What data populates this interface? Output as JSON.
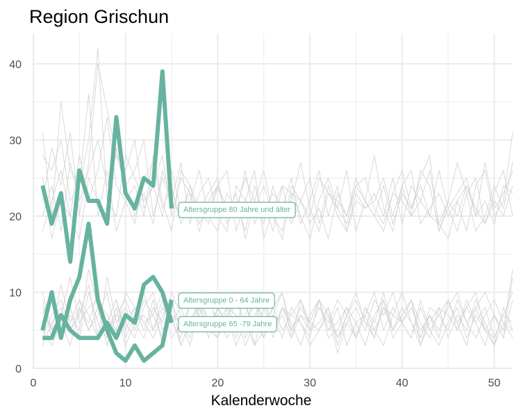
{
  "chart_data": {
    "type": "line",
    "title": "Region Grischun",
    "xlabel": "Kalenderwoche",
    "ylabel": "",
    "xlim": [
      0,
      52
    ],
    "ylim": [
      0,
      44
    ],
    "x_ticks": [
      0,
      10,
      20,
      30,
      40,
      50
    ],
    "y_ticks": [
      0,
      10,
      20,
      30,
      40
    ],
    "grid": true,
    "highlight_color": "#66b3a0",
    "background_color": "#d4d4d4",
    "series": [
      {
        "name": "Altersgruppe 80 Jahre und älter",
        "x": [
          1,
          2,
          3,
          4,
          5,
          6,
          7,
          8,
          9,
          10,
          11,
          12,
          13,
          14,
          15
        ],
        "values": [
          24,
          19,
          23,
          14,
          26,
          22,
          22,
          19,
          33,
          23,
          21,
          25,
          24,
          39,
          21
        ]
      },
      {
        "name": "Altersgruppe 0 - 64 Jahre",
        "x": [
          1,
          2,
          3,
          4,
          5,
          6,
          7,
          8,
          9,
          10,
          11,
          12,
          13,
          14,
          15
        ],
        "values": [
          4,
          4,
          7,
          5,
          4,
          4,
          4,
          6,
          4,
          7,
          6,
          11,
          12,
          10,
          6
        ]
      },
      {
        "name": "Altersgruppe 65 -79 Jahre",
        "x": [
          1,
          2,
          3,
          4,
          5,
          6,
          7,
          8,
          9,
          10,
          11,
          12,
          13,
          14,
          15
        ],
        "values": [
          5,
          10,
          4,
          9,
          12,
          19,
          9,
          5,
          2,
          1,
          3,
          1,
          2,
          3,
          9
        ]
      }
    ],
    "background_series": [
      [
        28,
        26,
        30,
        22,
        24,
        36,
        20,
        26,
        18,
        22,
        24,
        20,
        28,
        22,
        18,
        26,
        24,
        19,
        21,
        24,
        20,
        23,
        17,
        22,
        26,
        20,
        18,
        24,
        22,
        19,
        21,
        17,
        23,
        20,
        25,
        22,
        28,
        21,
        18,
        24,
        20,
        22,
        26,
        19,
        17,
        22,
        24,
        20,
        27,
        21,
        23,
        26
      ],
      [
        22,
        29,
        24,
        31,
        20,
        27,
        40,
        34,
        28,
        24,
        26,
        30,
        20,
        25,
        22,
        27,
        19,
        23,
        25,
        20,
        18,
        24,
        22,
        26,
        17,
        21,
        24,
        19,
        22,
        20,
        25,
        23,
        21,
        26,
        18,
        22,
        20,
        24,
        19,
        23,
        21,
        25,
        28,
        18,
        22,
        20,
        24,
        21,
        19,
        23,
        26,
        20
      ],
      [
        31,
        20,
        35,
        26,
        24,
        30,
        42,
        22,
        20,
        28,
        25,
        22,
        24,
        20,
        26,
        21,
        23,
        18,
        22,
        24,
        21,
        20,
        26,
        19,
        22,
        18,
        24,
        23,
        20,
        17,
        22,
        25,
        21,
        19,
        24,
        22,
        20,
        18,
        23,
        26,
        21,
        24,
        20,
        19,
        22,
        27,
        23,
        18,
        20,
        24,
        21,
        27
      ],
      [
        20,
        24,
        18,
        27,
        22,
        26,
        30,
        24,
        28,
        26,
        30,
        21,
        24,
        28,
        20,
        25,
        23,
        21,
        19,
        24,
        26,
        18,
        22,
        21,
        24,
        20,
        17,
        23,
        22,
        25,
        19,
        24,
        20,
        18,
        23,
        21,
        22,
        25,
        20,
        24,
        26,
        19,
        21,
        23,
        20,
        22,
        18,
        24,
        26,
        20,
        22,
        31
      ],
      [
        25,
        17,
        22,
        20,
        28,
        22,
        26,
        33,
        24,
        22,
        19,
        25,
        27,
        21,
        24,
        19,
        22,
        26,
        20,
        18,
        23,
        21,
        25,
        22,
        19,
        24,
        20,
        22,
        27,
        21,
        18,
        23,
        22,
        20,
        24,
        25,
        21,
        19,
        23,
        22,
        20,
        26,
        24,
        18,
        21,
        23,
        25,
        20,
        22,
        19,
        24,
        23
      ],
      [
        18,
        22,
        26,
        20,
        17,
        25,
        22,
        20,
        29,
        24,
        20,
        23,
        19,
        26,
        22,
        20,
        24,
        21,
        23,
        25,
        19,
        22,
        18,
        24,
        20,
        23,
        21,
        25,
        19,
        22,
        26,
        20,
        24,
        18,
        22,
        21,
        23,
        20,
        25,
        19,
        24,
        22,
        20,
        26,
        21,
        18,
        23,
        25,
        19,
        22,
        20,
        24
      ],
      [
        8,
        5,
        11,
        6,
        9,
        7,
        4,
        12,
        6,
        8,
        5,
        9,
        7,
        10,
        6,
        8,
        5,
        7,
        9,
        6,
        8,
        4,
        7,
        10,
        6,
        5,
        8,
        7,
        9,
        5,
        6,
        8,
        4,
        7,
        9,
        6,
        5,
        8,
        7,
        10,
        6,
        4,
        8,
        7,
        5,
        9,
        6,
        8,
        10,
        7,
        4,
        12
      ],
      [
        6,
        9,
        4,
        7,
        5,
        13,
        8,
        6,
        9,
        4,
        7,
        10,
        5,
        8,
        6,
        4,
        9,
        7,
        5,
        8,
        6,
        10,
        4,
        7,
        9,
        5,
        8,
        6,
        3,
        7,
        9,
        5,
        6,
        8,
        4,
        7,
        10,
        5,
        8,
        6,
        9,
        4,
        7,
        5,
        8,
        10,
        6,
        4,
        7,
        9,
        6,
        5
      ],
      [
        4,
        7,
        9,
        5,
        8,
        6,
        10,
        5,
        7,
        9,
        6,
        4,
        8,
        6,
        10,
        7,
        5,
        9,
        6,
        4,
        8,
        7,
        5,
        9,
        6,
        8,
        10,
        4,
        7,
        5,
        8,
        6,
        9,
        7,
        4,
        8,
        6,
        10,
        5,
        7,
        9,
        6,
        4,
        8,
        7,
        5,
        9,
        6,
        8,
        4,
        7,
        10
      ],
      [
        10,
        5,
        7,
        12,
        6,
        8,
        9,
        7,
        5,
        10,
        8,
        6,
        7,
        4,
        9,
        5,
        8,
        10,
        6,
        7,
        5,
        9,
        8,
        6,
        4,
        7,
        10,
        5,
        8,
        6,
        9,
        7,
        4,
        6,
        8,
        5,
        9,
        7,
        10,
        6,
        4,
        8,
        5,
        7,
        9,
        6,
        8,
        10,
        5,
        4,
        7,
        6
      ],
      [
        5,
        3,
        6,
        8,
        4,
        10,
        6,
        4,
        8,
        3,
        6,
        7,
        5,
        9,
        4,
        6,
        3,
        8,
        5,
        7,
        4,
        6,
        9,
        3,
        5,
        7,
        4,
        8,
        6,
        3,
        5,
        7,
        2,
        6,
        4,
        8,
        5,
        3,
        7,
        6,
        4,
        9,
        5,
        3,
        6,
        8,
        4,
        7,
        5,
        3,
        6,
        4
      ],
      [
        7,
        10,
        4,
        6,
        9,
        5,
        8,
        3,
        7,
        6,
        4,
        8,
        10,
        5,
        7,
        3,
        6,
        9,
        4,
        8,
        5,
        7,
        3,
        6,
        10,
        4,
        8,
        5,
        7,
        6,
        9,
        4,
        5,
        8,
        6,
        3,
        7,
        9,
        4,
        6,
        8,
        5,
        7,
        4,
        9,
        6,
        3,
        8,
        5,
        7,
        4,
        9
      ],
      [
        3,
        6,
        8,
        5,
        7,
        11,
        4,
        6,
        9,
        5,
        8,
        6,
        4,
        7,
        9,
        3,
        6,
        8,
        5,
        4,
        7,
        9,
        6,
        3,
        8,
        5,
        7,
        4,
        9,
        6,
        5,
        8,
        3,
        7,
        10,
        6,
        4,
        8,
        5,
        7,
        9,
        3,
        6,
        8,
        4,
        7,
        5,
        9,
        6,
        3,
        8,
        5
      ],
      [
        9,
        4,
        6,
        3,
        8,
        5,
        7,
        10,
        4,
        6,
        8,
        5,
        9,
        3,
        7,
        6,
        4,
        8,
        10,
        5,
        7,
        3,
        6,
        9,
        4,
        8,
        5,
        7,
        6,
        4,
        9,
        5,
        8,
        3,
        6,
        7,
        4,
        9,
        5,
        8,
        6,
        3,
        7,
        4,
        9,
        5,
        8,
        6,
        3,
        7,
        5,
        13
      ]
    ]
  }
}
